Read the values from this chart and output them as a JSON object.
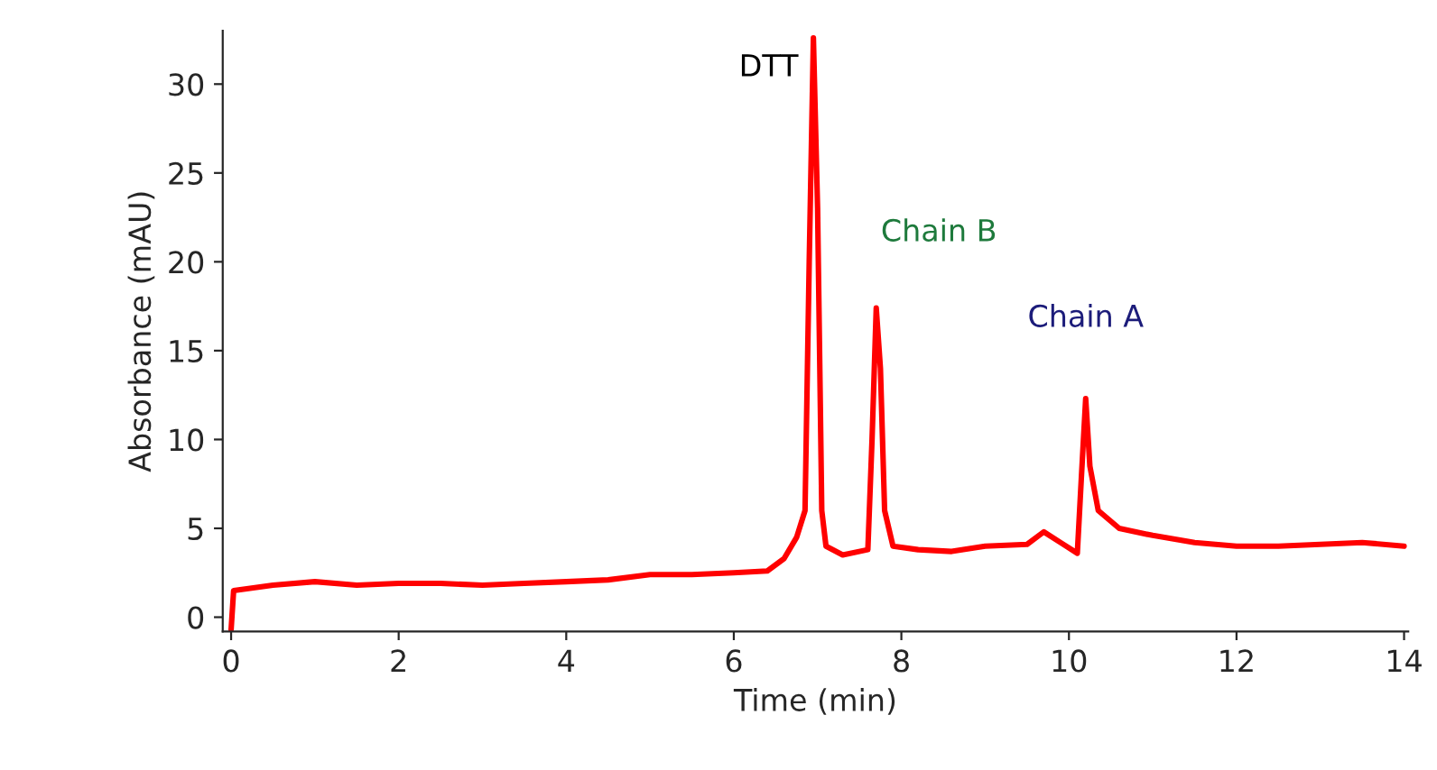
{
  "chart_data": {
    "type": "line",
    "xlabel": "Time (min)",
    "ylabel": "Absorbance (mAU)",
    "xlim": [
      -0.1,
      14.05
    ],
    "ylim": [
      -0.8,
      33
    ],
    "xticks": [
      0,
      2,
      4,
      6,
      8,
      10,
      12,
      14
    ],
    "yticks": [
      0,
      5,
      10,
      15,
      20,
      25,
      30
    ],
    "grid": false,
    "legend": false,
    "marker": "none",
    "line_style": "solid",
    "series": [
      {
        "color": "#ff0000",
        "x": [
          0,
          0.03,
          0.5,
          1,
          1.5,
          2,
          2.5,
          3,
          3.5,
          4,
          4.5,
          5,
          5.5,
          6,
          6.4,
          6.6,
          6.75,
          6.85,
          6.9,
          6.95,
          7.0,
          7.05,
          7.1,
          7.3,
          7.6,
          7.65,
          7.7,
          7.75,
          7.8,
          7.9,
          8.2,
          8.6,
          9,
          9.5,
          9.7,
          9.9,
          10.1,
          10.15,
          10.2,
          10.25,
          10.35,
          10.6,
          11,
          11.5,
          12,
          12.5,
          13,
          13.5,
          14
        ],
        "values": [
          -0.7,
          1.5,
          1.8,
          2.0,
          1.8,
          1.9,
          1.9,
          1.8,
          1.9,
          2.0,
          2.1,
          2.4,
          2.4,
          2.5,
          2.6,
          3.3,
          4.5,
          6,
          20,
          32.6,
          23,
          6,
          4,
          3.5,
          3.8,
          10,
          17.4,
          14,
          6,
          4,
          3.8,
          3.7,
          4.0,
          4.1,
          4.8,
          4.2,
          3.6,
          8,
          12.3,
          8.5,
          6,
          5.0,
          4.6,
          4.2,
          4.0,
          4.0,
          4.1,
          4.2,
          4.0
        ]
      }
    ],
    "annotations": [
      {
        "text": "DTT",
        "x": 6.95,
        "y": 32.6
      },
      {
        "text": "Chain B",
        "x": 7.7,
        "y": 17.4
      },
      {
        "text": "Chain A",
        "x": 10.2,
        "y": 12.3
      }
    ]
  }
}
